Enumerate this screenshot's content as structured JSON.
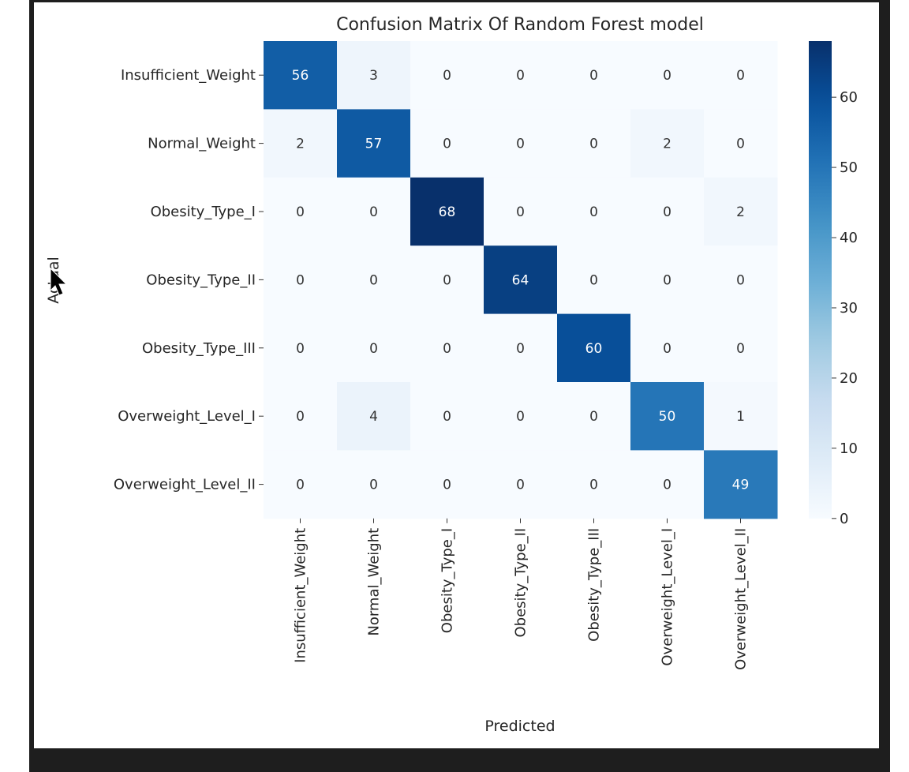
{
  "chart_data": {
    "type": "heatmap",
    "title": "Confusion Matrix Of Random Forest model",
    "xlabel": "Predicted",
    "ylabel": "Actual",
    "row_labels": [
      "Insufficient_Weight",
      "Normal_Weight",
      "Obesity_Type_I",
      "Obesity_Type_II",
      "Obesity_Type_III",
      "Overweight_Level_I",
      "Overweight_Level_II"
    ],
    "col_labels": [
      "Insufficient_Weight",
      "Normal_Weight",
      "Obesity_Type_I",
      "Obesity_Type_II",
      "Obesity_Type_III",
      "Overweight_Level_I",
      "Overweight_Level_II"
    ],
    "values": [
      [
        56,
        3,
        0,
        0,
        0,
        0,
        0
      ],
      [
        2,
        57,
        0,
        0,
        0,
        2,
        0
      ],
      [
        0,
        0,
        68,
        0,
        0,
        0,
        2
      ],
      [
        0,
        0,
        0,
        64,
        0,
        0,
        0
      ],
      [
        0,
        0,
        0,
        0,
        60,
        0,
        0
      ],
      [
        0,
        4,
        0,
        0,
        0,
        50,
        1
      ],
      [
        0,
        0,
        0,
        0,
        0,
        0,
        49
      ]
    ],
    "colormap": "Blues",
    "colorbar": {
      "range": [
        0,
        68
      ],
      "ticks": [
        0,
        10,
        20,
        30,
        40,
        50,
        60
      ]
    },
    "grid": false
  },
  "colors": {
    "frame": "#1e1e1e",
    "low": "#f7fbff",
    "high": "#08306b"
  },
  "cursor": {
    "icon": "mouse-pointer-icon"
  }
}
